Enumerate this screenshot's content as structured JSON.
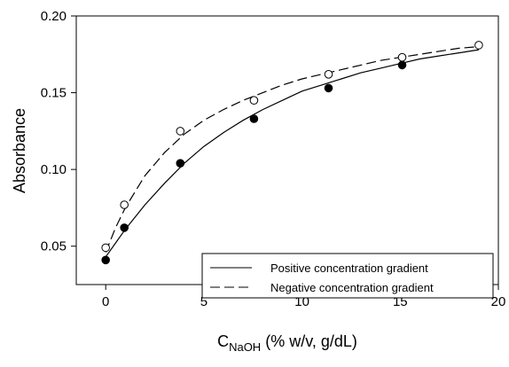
{
  "chart_data": {
    "type": "scatter",
    "title": "",
    "xlabel": {
      "main": "C",
      "subscript": "NaOH",
      "suffix": " (% w/v, g/dL)"
    },
    "ylabel": "Absorbance",
    "xlim": [
      -1.5,
      20
    ],
    "ylim": [
      0.025,
      0.2
    ],
    "x_ticks": [
      0,
      5,
      10,
      15,
      20
    ],
    "y_ticks": [
      0.05,
      0.1,
      0.15,
      0.2
    ],
    "x_tick_labels": [
      "0",
      "5",
      "10",
      "15",
      "20"
    ],
    "y_tick_labels": [
      "0.05",
      "0.10",
      "0.15",
      "0.20"
    ],
    "grid": false,
    "legend_position": "bottom-right",
    "series": [
      {
        "name": "Positive concentration gradient",
        "marker": "filled-circle",
        "line_style": "solid",
        "color": "#000000",
        "points": [
          {
            "x": 0,
            "y": 0.041
          },
          {
            "x": 0.95,
            "y": 0.062
          },
          {
            "x": 3.8,
            "y": 0.104
          },
          {
            "x": 7.55,
            "y": 0.133
          },
          {
            "x": 11.35,
            "y": 0.153
          },
          {
            "x": 15.1,
            "y": 0.168
          }
        ],
        "fit": [
          {
            "x": 0,
            "y": 0.043
          },
          {
            "x": 1,
            "y": 0.061
          },
          {
            "x": 2,
            "y": 0.077
          },
          {
            "x": 3,
            "y": 0.091
          },
          {
            "x": 4,
            "y": 0.104
          },
          {
            "x": 5,
            "y": 0.115
          },
          {
            "x": 6,
            "y": 0.124
          },
          {
            "x": 7,
            "y": 0.132
          },
          {
            "x": 8,
            "y": 0.139
          },
          {
            "x": 9,
            "y": 0.145
          },
          {
            "x": 10,
            "y": 0.151
          },
          {
            "x": 11,
            "y": 0.155
          },
          {
            "x": 12,
            "y": 0.159
          },
          {
            "x": 13,
            "y": 0.163
          },
          {
            "x": 14,
            "y": 0.166
          },
          {
            "x": 15,
            "y": 0.169
          },
          {
            "x": 16,
            "y": 0.172
          },
          {
            "x": 17,
            "y": 0.174
          },
          {
            "x": 18,
            "y": 0.176
          },
          {
            "x": 19,
            "y": 0.178
          }
        ]
      },
      {
        "name": "Negative concentration gradient",
        "marker": "open-circle",
        "line_style": "dashed",
        "color": "#000000",
        "points": [
          {
            "x": 0,
            "y": 0.049
          },
          {
            "x": 0.95,
            "y": 0.077
          },
          {
            "x": 3.8,
            "y": 0.125
          },
          {
            "x": 7.55,
            "y": 0.145
          },
          {
            "x": 11.35,
            "y": 0.162
          },
          {
            "x": 15.1,
            "y": 0.173
          },
          {
            "x": 19,
            "y": 0.181
          }
        ],
        "fit": [
          {
            "x": 0,
            "y": 0.046
          },
          {
            "x": 0.5,
            "y": 0.062
          },
          {
            "x": 1,
            "y": 0.075
          },
          {
            "x": 2,
            "y": 0.096
          },
          {
            "x": 3,
            "y": 0.111
          },
          {
            "x": 4,
            "y": 0.123
          },
          {
            "x": 5,
            "y": 0.132
          },
          {
            "x": 6,
            "y": 0.139
          },
          {
            "x": 7,
            "y": 0.145
          },
          {
            "x": 8,
            "y": 0.15
          },
          {
            "x": 9,
            "y": 0.155
          },
          {
            "x": 10,
            "y": 0.159
          },
          {
            "x": 11,
            "y": 0.162
          },
          {
            "x": 12,
            "y": 0.165
          },
          {
            "x": 13,
            "y": 0.168
          },
          {
            "x": 14,
            "y": 0.171
          },
          {
            "x": 15,
            "y": 0.173
          },
          {
            "x": 16,
            "y": 0.175
          },
          {
            "x": 17,
            "y": 0.177
          },
          {
            "x": 18,
            "y": 0.179
          },
          {
            "x": 19,
            "y": 0.18
          }
        ]
      }
    ]
  }
}
